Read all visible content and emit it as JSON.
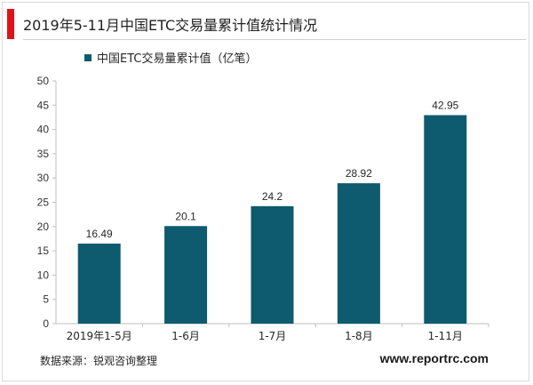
{
  "title": "2019年5-11月中国ETC交易量累计值统计情况",
  "footer": {
    "source": "数据来源：锐观咨询整理",
    "brand": "www.reportrc.com"
  },
  "colors": {
    "accent": "#e0131b",
    "bar": "#0e5a6f",
    "grid": "#d9d9d9"
  },
  "chart_data": {
    "type": "bar",
    "categories": [
      "2019年1-5月",
      "1-6月",
      "1-7月",
      "1-8月",
      "1-11月"
    ],
    "series": [
      {
        "name": "中国ETC交易量累计值（亿笔）",
        "values": [
          16.49,
          20.1,
          24.2,
          28.92,
          42.95
        ]
      }
    ],
    "value_labels": [
      "16.49",
      "20.1",
      "24.2",
      "28.92",
      "42.95"
    ],
    "ylim": [
      0,
      50
    ],
    "yticks": [
      0,
      5,
      10,
      15,
      20,
      25,
      30,
      35,
      40,
      45,
      50
    ],
    "xlabel": "",
    "ylabel": "",
    "grid": false,
    "legend": "top-left"
  }
}
